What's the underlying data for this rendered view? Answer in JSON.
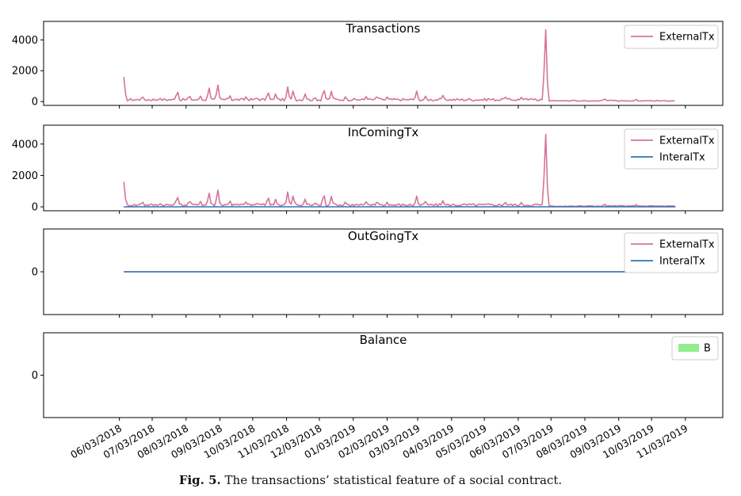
{
  "caption": {
    "label": "Fig. 5.",
    "text": "The transactions’ statistical feature of a social contract."
  },
  "colors": {
    "external": "#d7729c",
    "internal": "#2e75b6",
    "balance": "#90ee90"
  },
  "chart_data": [
    {
      "type": "line",
      "title": "Transactions",
      "ylim": [
        -250,
        5200
      ],
      "yticks": [
        0,
        2000,
        4000
      ],
      "legend_position": "top-right",
      "series": [
        {
          "name": "ExternalTx",
          "color": "#d7729c",
          "spikes": [
            [
              "2018-06-07",
              1600
            ],
            [
              "2018-06-24",
              380
            ],
            [
              "2018-07-10",
              250
            ],
            [
              "2018-07-26",
              750
            ],
            [
              "2018-08-06",
              450
            ],
            [
              "2018-08-16",
              380
            ],
            [
              "2018-08-24",
              950
            ],
            [
              "2018-09-01",
              1150
            ],
            [
              "2018-09-12",
              430
            ],
            [
              "2018-09-27",
              350
            ],
            [
              "2018-10-07",
              300
            ],
            [
              "2018-10-17",
              680
            ],
            [
              "2018-10-24",
              520
            ],
            [
              "2018-11-04",
              950
            ],
            [
              "2018-11-09",
              750
            ],
            [
              "2018-11-20",
              500
            ],
            [
              "2018-11-29",
              300
            ],
            [
              "2018-12-07",
              900
            ],
            [
              "2018-12-14",
              700
            ],
            [
              "2018-12-27",
              350
            ],
            [
              "2019-01-15",
              350
            ],
            [
              "2019-01-25",
              400
            ],
            [
              "2019-02-03",
              300
            ],
            [
              "2019-03-02",
              700
            ],
            [
              "2019-03-10",
              350
            ],
            [
              "2019-03-26",
              400
            ],
            [
              "2019-04-19",
              200
            ],
            [
              "2019-05-07",
              250
            ],
            [
              "2019-05-22",
              350
            ],
            [
              "2019-06-06",
              300
            ],
            [
              "2019-06-18",
              220
            ],
            [
              "2019-06-28",
              5000
            ],
            [
              "2019-08-21",
              200
            ],
            [
              "2019-09-19",
              150
            ]
          ]
        }
      ]
    },
    {
      "type": "line",
      "title": "InComingTx",
      "ylim": [
        -250,
        5200
      ],
      "yticks": [
        0,
        2000,
        4000
      ],
      "legend_position": "top-right",
      "series": [
        {
          "name": "ExternalTx",
          "color": "#d7729c",
          "spikes": [
            [
              "2018-06-07",
              1600
            ],
            [
              "2018-06-24",
              380
            ],
            [
              "2018-07-10",
              250
            ],
            [
              "2018-07-26",
              750
            ],
            [
              "2018-08-06",
              450
            ],
            [
              "2018-08-16",
              380
            ],
            [
              "2018-08-24",
              950
            ],
            [
              "2018-09-01",
              1150
            ],
            [
              "2018-09-12",
              430
            ],
            [
              "2018-09-27",
              350
            ],
            [
              "2018-10-07",
              300
            ],
            [
              "2018-10-17",
              680
            ],
            [
              "2018-10-24",
              520
            ],
            [
              "2018-11-04",
              950
            ],
            [
              "2018-11-09",
              750
            ],
            [
              "2018-11-20",
              500
            ],
            [
              "2018-11-29",
              300
            ],
            [
              "2018-12-07",
              900
            ],
            [
              "2018-12-14",
              700
            ],
            [
              "2018-12-27",
              350
            ],
            [
              "2019-01-15",
              350
            ],
            [
              "2019-01-25",
              400
            ],
            [
              "2019-02-03",
              300
            ],
            [
              "2019-03-02",
              700
            ],
            [
              "2019-03-10",
              350
            ],
            [
              "2019-03-26",
              400
            ],
            [
              "2019-04-19",
              200
            ],
            [
              "2019-05-07",
              250
            ],
            [
              "2019-05-22",
              350
            ],
            [
              "2019-06-06",
              300
            ],
            [
              "2019-06-18",
              220
            ],
            [
              "2019-06-28",
              4950
            ],
            [
              "2019-08-21",
              200
            ],
            [
              "2019-09-19",
              150
            ]
          ]
        },
        {
          "name": "InteralTx",
          "color": "#2e75b6",
          "spikes": [],
          "flat": 0
        }
      ]
    },
    {
      "type": "line",
      "title": "OutGoingTx",
      "ylim": [
        -1,
        1
      ],
      "yticks": [
        0
      ],
      "legend_position": "top-right",
      "series": [
        {
          "name": "ExternalTx",
          "color": "#d7729c",
          "spikes": [],
          "flat": 0
        },
        {
          "name": "InteralTx",
          "color": "#2e75b6",
          "spikes": [],
          "flat": 0
        }
      ]
    },
    {
      "type": "area",
      "title": "Balance",
      "ylim": [
        -1,
        1
      ],
      "yticks": [
        0
      ],
      "legend_position": "top-right",
      "series": [
        {
          "name": "B",
          "color": "#90ee90",
          "spikes": [],
          "patch": true
        }
      ]
    }
  ],
  "x_axis": {
    "range": [
      "2018-06-07",
      "2019-10-25"
    ],
    "tick_labels": [
      "06/03/2018",
      "07/03/2018",
      "08/03/2018",
      "09/03/2018",
      "10/03/2018",
      "11/03/2018",
      "12/03/2018",
      "01/03/2019",
      "02/03/2019",
      "03/03/2019",
      "04/03/2019",
      "05/03/2019",
      "06/03/2019",
      "07/03/2019",
      "08/03/2019",
      "09/03/2019",
      "10/03/2019",
      "11/03/2019"
    ],
    "tick_dates": [
      "2018-06-03",
      "2018-07-03",
      "2018-08-03",
      "2018-09-03",
      "2018-10-03",
      "2018-11-03",
      "2018-12-03",
      "2019-01-03",
      "2019-02-03",
      "2019-03-03",
      "2019-04-03",
      "2019-05-03",
      "2019-06-03",
      "2019-07-03",
      "2019-08-03",
      "2019-09-03",
      "2019-10-03",
      "2019-11-03"
    ]
  }
}
